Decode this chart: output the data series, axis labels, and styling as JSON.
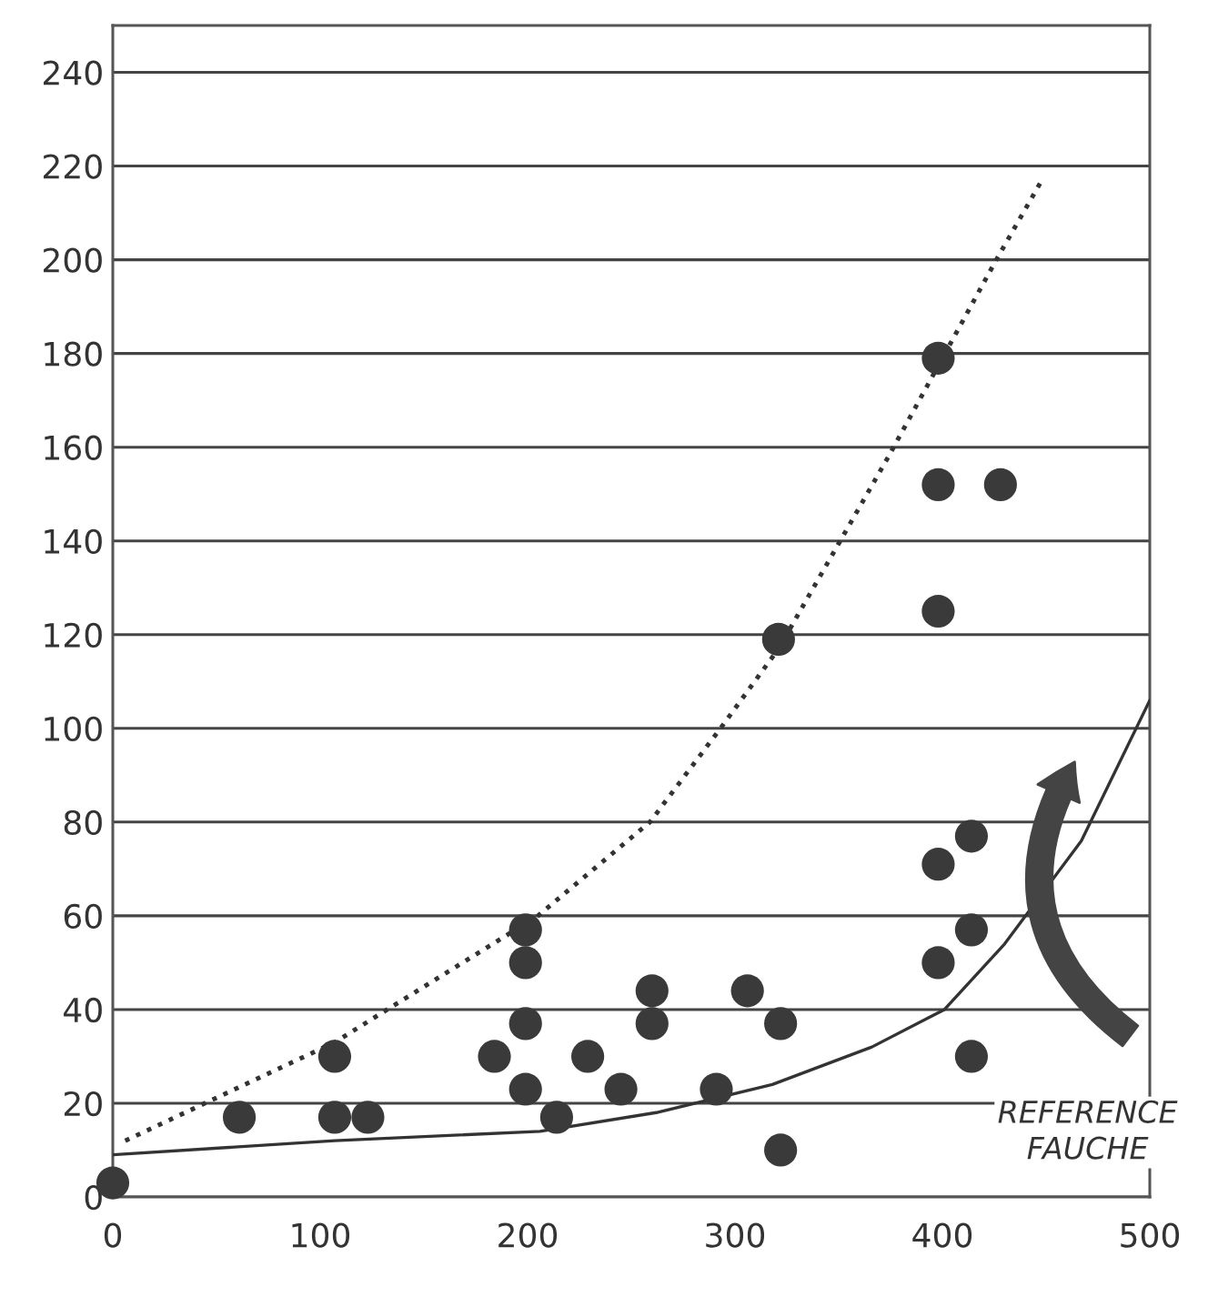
{
  "chart_data": {
    "type": "scatter",
    "series": [
      {
        "color": "#3a3a3a",
        "marker": "circle",
        "x": [
          0,
          61,
          107,
          107,
          123,
          184,
          199,
          199,
          199,
          199,
          214,
          229,
          245,
          260,
          260,
          291,
          306,
          322,
          322,
          321,
          398,
          414,
          414,
          398,
          414,
          398,
          398,
          428,
          398
        ],
        "values": [
          3,
          17,
          30,
          17,
          17,
          30,
          57,
          50,
          37,
          23,
          17,
          30,
          23,
          44,
          37,
          23,
          44,
          37,
          10,
          119,
          71,
          77,
          57,
          50,
          30,
          179,
          152,
          152,
          125
        ]
      },
      {
        "type": "line",
        "color": "#333333",
        "line_style": "dotted",
        "marker": "none",
        "x": [
          6,
          107,
          205,
          259,
          293,
          321,
          374,
          426,
          448
        ],
        "values": [
          12,
          33,
          60,
          80,
          100,
          117,
          158,
          200,
          217
        ]
      },
      {
        "type": "line",
        "color": "#333333",
        "line_style": "solid",
        "marker": "none",
        "x": [
          0,
          107,
          206,
          262,
          318,
          366,
          401,
          430,
          467,
          500
        ],
        "values": [
          9,
          12,
          14,
          18,
          24,
          32,
          40,
          54,
          76,
          106
        ]
      }
    ],
    "xlim": [
      0,
      500
    ],
    "xticks": [
      0,
      100,
      200,
      300,
      400,
      500
    ],
    "ylim": [
      0,
      250
    ],
    "yticks": [
      0,
      20,
      40,
      60,
      80,
      100,
      120,
      140,
      160,
      180,
      200,
      220,
      240
    ],
    "grid": "y",
    "annotations": [
      "REFERENCE\nFAUCHE"
    ]
  }
}
